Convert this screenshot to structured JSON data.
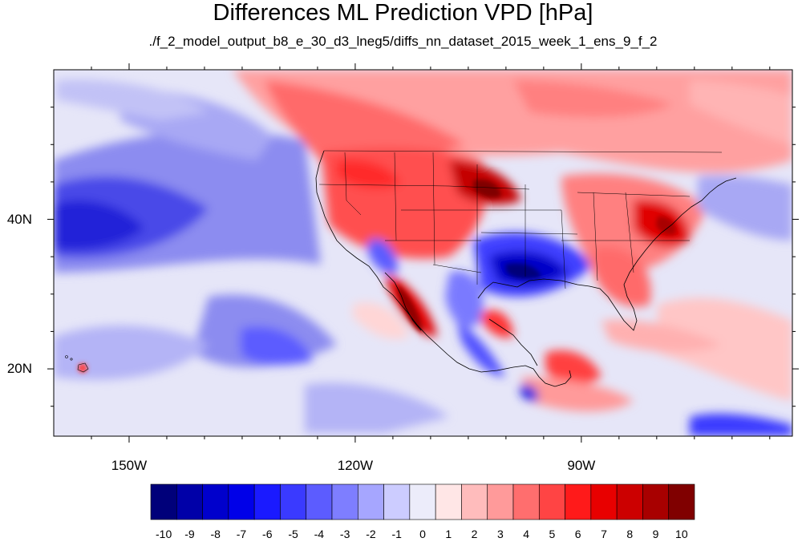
{
  "title": "Differences ML Prediction VPD [hPa]",
  "subtitle": "./f_2_model_output_b8_e_30_d3_lneg5/diffs_nn_dataset_2015_week_1_ens_9_f_2",
  "lon_labels": [
    "150W",
    "120W",
    "90W"
  ],
  "lat_labels": [
    "40N",
    "20N"
  ],
  "colorbar": {
    "labels": [
      "-10",
      "-9",
      "-8",
      "-7",
      "-6",
      "-5",
      "-4",
      "-3",
      "-2",
      "-1",
      "0",
      "1",
      "2",
      "3",
      "4",
      "5",
      "6",
      "7",
      "8",
      "9",
      "10"
    ],
    "colors": [
      "#00007a",
      "#0000a8",
      "#0000cc",
      "#0000e8",
      "#1a1aff",
      "#3a3aff",
      "#5c5cff",
      "#7e7eff",
      "#a6a6ff",
      "#ccccff",
      "#ececfa",
      "#ffe6e6",
      "#ffbcbc",
      "#ff9a9a",
      "#ff6e6e",
      "#ff4444",
      "#ff1a1a",
      "#e80000",
      "#cc0000",
      "#a80000",
      "#800000"
    ]
  },
  "map": {
    "lon_range": [
      -160,
      -62
    ],
    "lat_range": [
      11,
      60
    ],
    "lon_ticks": [
      -150,
      -120,
      -90
    ],
    "lat_ticks": [
      40,
      20
    ]
  }
}
